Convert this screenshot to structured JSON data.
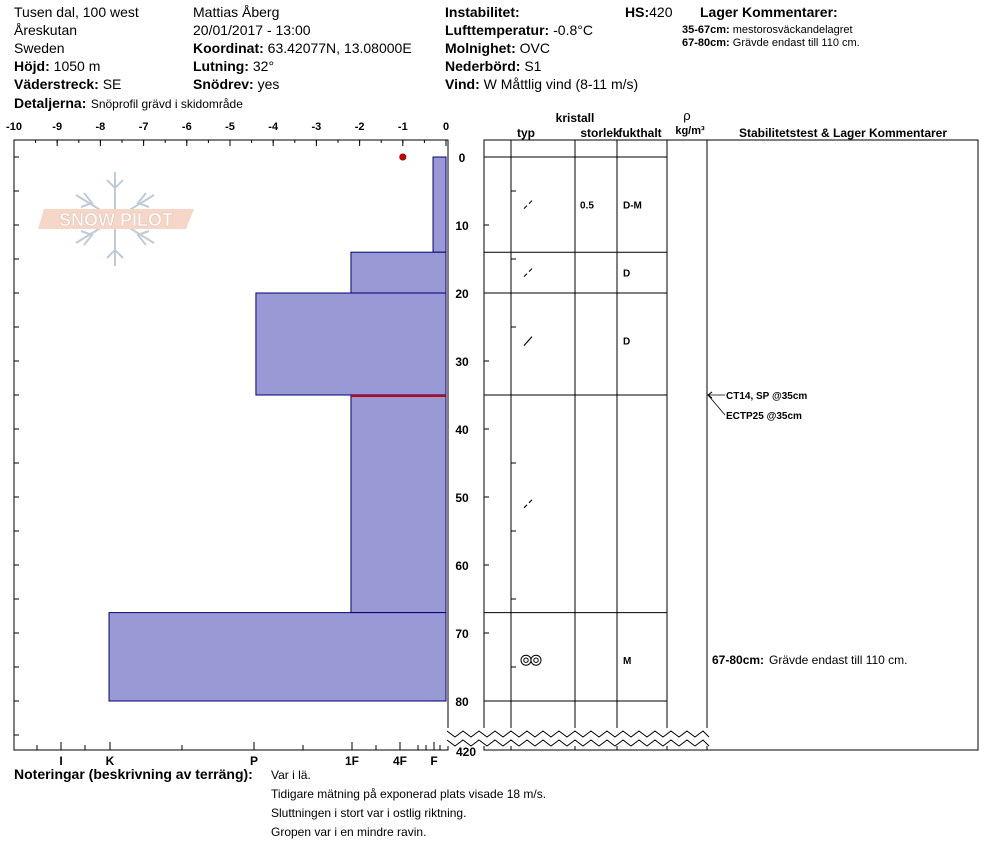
{
  "header": {
    "location": "Tusen dal, 100 west",
    "area": "Åreskutan",
    "country": "Sweden",
    "elevation_label": "Höjd:",
    "elevation_value": "1050 m",
    "aspect_label": "Väderstreck:",
    "aspect_value": "SE",
    "detail_label": "Detaljerna:",
    "detail_value": "Snöprofil grävd i skidområde",
    "observer": "Mattias Åberg",
    "datetime": "20/01/2017 - 13:00",
    "coord_label": "Koordinat:",
    "coord_value": "63.42077N, 13.08000E",
    "slope_label": "Lutning:",
    "slope_value": "32°",
    "drift_label": "Snödrev:",
    "drift_value": "yes",
    "instability_label": "Instabilitet:",
    "airtemp_label": "Lufttemperatur:",
    "airtemp_value": "-0.8°C",
    "sky_label": "Molnighet:",
    "sky_value": "OVC",
    "precip_label": "Nederbörd:",
    "precip_value": "S1",
    "wind_label": "Vind:",
    "wind_value": "W Måttlig vind (8-11 m/s)",
    "hs_label": "HS:",
    "hs_value": "420",
    "layer_comments_title": "Lager Kommentarer:",
    "layer_comments": [
      {
        "range": "35-67cm:",
        "text": "mestorosväckandelagret"
      },
      {
        "range": "67-80cm:",
        "text": "Grävde endast till 110 cm."
      }
    ]
  },
  "logo_text": "SNOW PILOT",
  "columns": {
    "crystal_label": "kristall",
    "type_label": "typ",
    "size_label": "storlek",
    "moisture_label": "fukthalt",
    "rho_symbol": "ρ",
    "density_unit": "kg/m³",
    "stability_label": "Stabilitetstest & Lager Kommentarer"
  },
  "colors": {
    "hardness_fill": "#9999d6",
    "hardness_stroke": "#00007a",
    "weak_layer": "#cc0000",
    "temp_point": "#cc0000"
  },
  "chart_data": {
    "type": "bar",
    "title": "",
    "xlabel": "",
    "ylabel": "",
    "temperature_axis": {
      "ticks": [
        "-10",
        "-9",
        "-8",
        "-7",
        "-6",
        "-5",
        "-4",
        "-3",
        "-2",
        "-1",
        "0"
      ],
      "range": [
        -10,
        0
      ]
    },
    "hardness_axis": {
      "ticks": [
        "I",
        "K",
        "P",
        "1F",
        "4F",
        "F"
      ]
    },
    "depth_axis": {
      "ticks": [
        "0",
        "10",
        "20",
        "30",
        "40",
        "50",
        "60",
        "70",
        "80"
      ],
      "range": [
        0,
        80
      ],
      "bottom_label": "420"
    },
    "temperature_points": [
      {
        "depth": 0,
        "temp": -1.0
      }
    ],
    "layers": [
      {
        "top": 0,
        "bottom": 14,
        "hardness_width": 0.3,
        "type": "/",
        "size": "0.5",
        "moisture": "D-M",
        "type_y": 7
      },
      {
        "top": 14,
        "bottom": 20,
        "hardness_width": 2.2,
        "type": "/",
        "size": "",
        "moisture": "D",
        "type_y": 17
      },
      {
        "top": 20,
        "bottom": 35,
        "hardness_width": 4.4,
        "type": "/",
        "size": "",
        "moisture": "D",
        "type_y": 27
      },
      {
        "top": 35,
        "bottom": 67,
        "hardness_width": 2.2,
        "type": "/",
        "size": "",
        "moisture": "",
        "type_y": 51
      },
      {
        "top": 67,
        "bottom": 80,
        "hardness_width": 7.8,
        "type": "rounds",
        "size": "",
        "moisture": "M",
        "type_y": 74
      }
    ],
    "weak_layer_depth": 35,
    "stability_tests": [
      {
        "depth": 35,
        "text": "CT14, SP @35cm"
      },
      {
        "depth": 35,
        "text": "ECTP25 @35cm"
      }
    ],
    "layer_comment_in_chart": {
      "depth": 74,
      "range": "67-80cm:",
      "text": "Grävde endast till 110 cm."
    }
  },
  "notes": {
    "label": "Noteringar (beskrivning av terräng):",
    "lines": [
      "Var i lä.",
      "Tidigare mätning på exponerad plats visade 18 m/s.",
      "Sluttningen i stort var i ostlig riktning.",
      "Gropen var i en mindre ravin."
    ]
  }
}
